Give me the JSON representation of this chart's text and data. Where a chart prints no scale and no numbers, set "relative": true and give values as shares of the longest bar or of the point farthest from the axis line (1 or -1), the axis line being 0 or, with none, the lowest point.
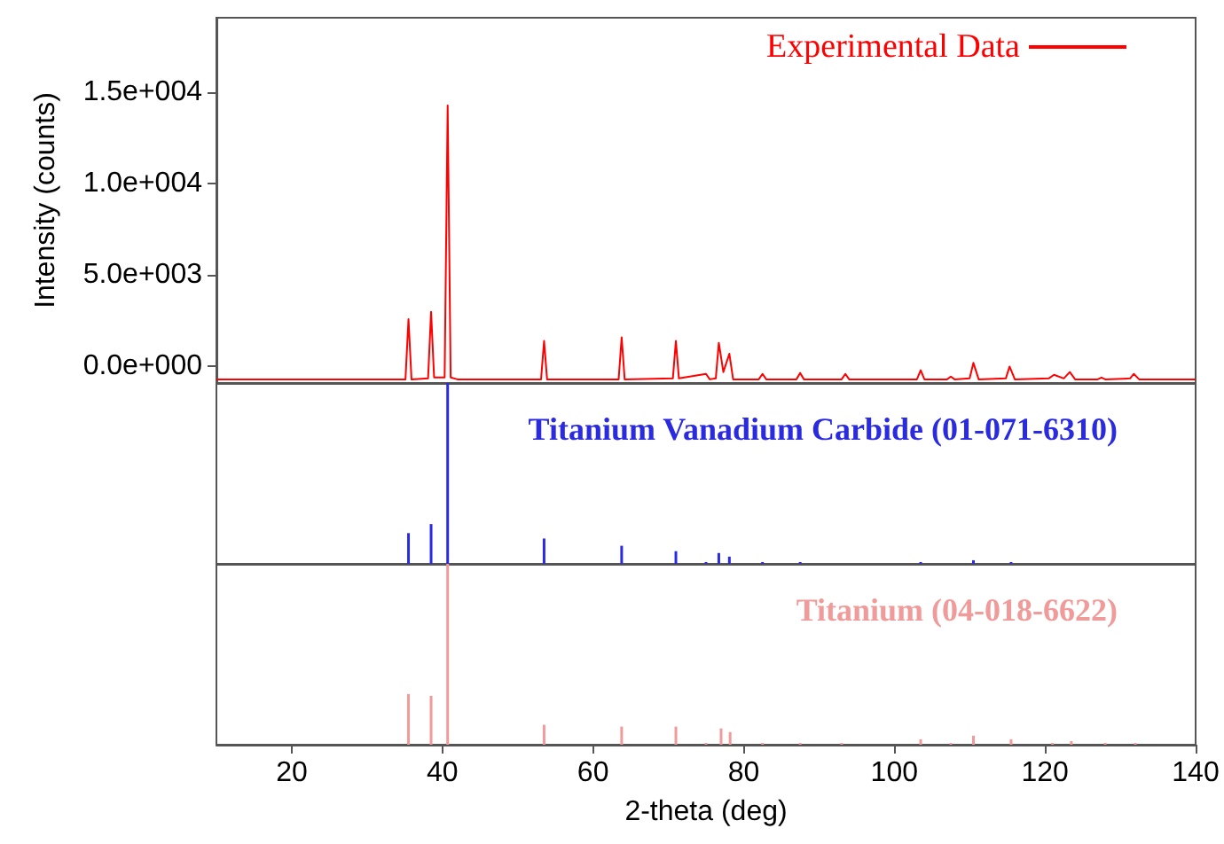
{
  "chart_data": [
    {
      "type": "line",
      "ylabel": "Intensity (counts)",
      "xlim": [
        10,
        140
      ],
      "ylim": [
        -900,
        19100
      ],
      "yticks": [
        {
          "value": 0,
          "label": "0.0e+000"
        },
        {
          "value": 5000,
          "label": "5.0e+003"
        },
        {
          "value": 10000,
          "label": "1.0e+004"
        },
        {
          "value": 15000,
          "label": "1.5e+004"
        }
      ],
      "tick_labels": "y",
      "legend": "top right",
      "marker": "none",
      "line_style": "solid",
      "series": [
        {
          "name": "Experimental Data",
          "color": "#ff0000",
          "x": [
            10,
            30,
            35.1,
            35.5,
            35.9,
            38.1,
            38.5,
            38.9,
            40.3,
            40.7,
            41.1,
            42,
            53.1,
            53.5,
            53.9,
            63.4,
            63.8,
            64.2,
            70.6,
            71,
            71.4,
            75,
            75.5,
            76.3,
            76.7,
            77.3,
            78.1,
            78.6,
            82,
            82.5,
            83,
            87,
            87.5,
            88,
            93,
            93.5,
            94,
            103,
            103.5,
            104,
            107,
            107.5,
            108,
            110,
            110.5,
            111.2,
            114.8,
            115.3,
            116,
            120.5,
            121.2,
            122.5,
            123.3,
            124,
            127,
            127.5,
            128,
            131.3,
            131.8,
            132.5,
            140
          ],
          "values": [
            -700,
            -700,
            -700,
            2600,
            -700,
            -650,
            3000,
            -600,
            -600,
            14300,
            -600,
            -700,
            -700,
            1400,
            -700,
            -700,
            1600,
            -700,
            -650,
            1400,
            -650,
            -400,
            -700,
            -650,
            1300,
            -300,
            700,
            -700,
            -700,
            -400,
            -700,
            -700,
            -350,
            -700,
            -700,
            -400,
            -700,
            -700,
            -200,
            -700,
            -700,
            -550,
            -700,
            -650,
            200,
            -700,
            -650,
            0,
            -700,
            -650,
            -450,
            -650,
            -300,
            -700,
            -700,
            -600,
            -700,
            -650,
            -400,
            -700,
            -700
          ]
        }
      ]
    },
    {
      "type": "bar",
      "relative": true,
      "xlim": [
        10,
        140
      ],
      "tick_labels": false,
      "legend": "top right",
      "series": [
        {
          "name": "Titanium Vanadium Carbide (01-071-6310)",
          "color": "#2a2ae0",
          "x": [
            35.5,
            38.5,
            40.7,
            53.5,
            63.8,
            71,
            75,
            76.7,
            78.1,
            82.5,
            87.5,
            103.5,
            110.5,
            115.5
          ],
          "values": [
            0.17,
            0.22,
            1,
            0.14,
            0.1,
            0.07,
            0.01,
            0.06,
            0.04,
            0.01,
            0.01,
            0.01,
            0.02,
            0.01
          ]
        }
      ]
    },
    {
      "type": "bar",
      "relative": true,
      "xlim": [
        10,
        140
      ],
      "xticks": [
        20,
        40,
        60,
        80,
        100,
        120,
        140
      ],
      "xlabel": "2-theta (deg)",
      "tick_labels": "x",
      "legend": "top right",
      "series": [
        {
          "name": "Titanium (04-018-6622)",
          "color": "#f09a9a",
          "x": [
            35.5,
            38.5,
            40.7,
            53.5,
            63.8,
            71,
            75,
            77,
            78.2,
            82.5,
            87.5,
            93,
            103.5,
            107.5,
            110.5,
            115.5,
            121,
            123.5,
            128,
            132
          ],
          "values": [
            0.28,
            0.27,
            1,
            0.11,
            0.1,
            0.1,
            0.01,
            0.09,
            0.07,
            0.01,
            0.01,
            0.01,
            0.03,
            0.01,
            0.05,
            0.03,
            0.01,
            0.02,
            0.01,
            0.01
          ]
        }
      ]
    }
  ]
}
